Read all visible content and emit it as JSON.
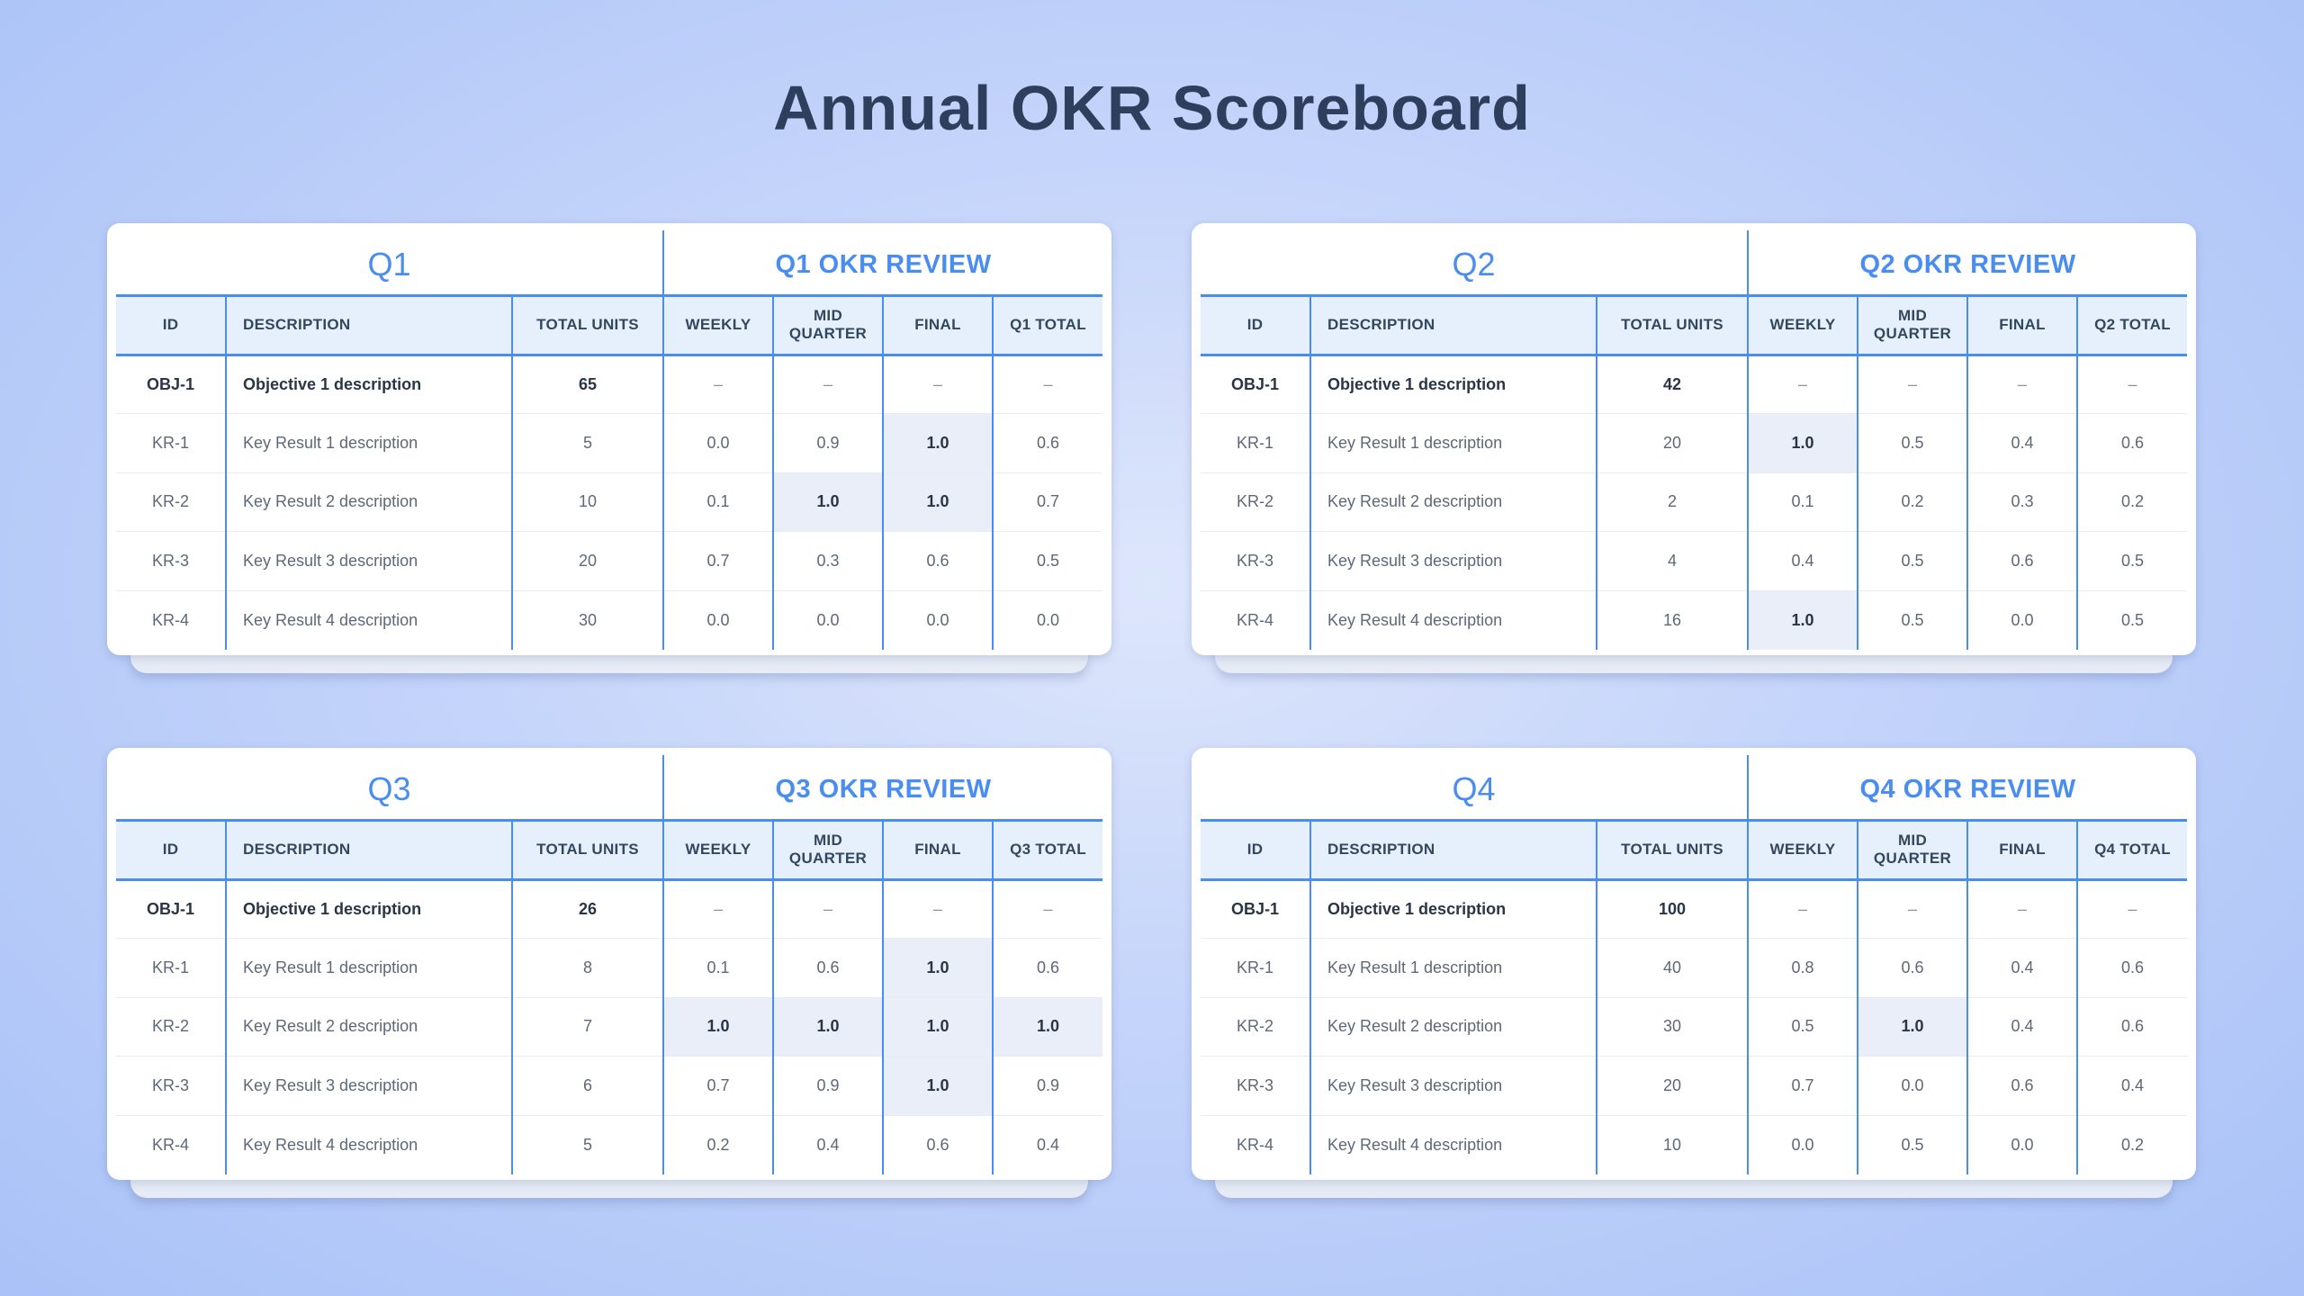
{
  "page_title": "Annual OKR Scoreboard",
  "column_headers": {
    "id": "ID",
    "description": "DESCRIPTION",
    "total_units": "TOTAL UNITS",
    "weekly": "WEEKLY",
    "mid_quarter": "MID QUARTER",
    "final": "FINAL"
  },
  "quarters": [
    {
      "label": "Q1",
      "review_title": "Q1 OKR REVIEW",
      "total_header": "Q1 TOTAL",
      "rows": [
        {
          "id": "OBJ-1",
          "desc": "Objective 1 description",
          "units": "65",
          "weekly": "–",
          "mid": "–",
          "final": "–",
          "total": "–"
        },
        {
          "id": "KR-1",
          "desc": "Key Result 1 description",
          "units": "5",
          "weekly": "0.0",
          "mid": "0.9",
          "final": "1.0",
          "total": "0.6"
        },
        {
          "id": "KR-2",
          "desc": "Key Result 2 description",
          "units": "10",
          "weekly": "0.1",
          "mid": "1.0",
          "final": "1.0",
          "total": "0.7"
        },
        {
          "id": "KR-3",
          "desc": "Key Result 3 description",
          "units": "20",
          "weekly": "0.7",
          "mid": "0.3",
          "final": "0.6",
          "total": "0.5"
        },
        {
          "id": "KR-4",
          "desc": "Key Result 4 description",
          "units": "30",
          "weekly": "0.0",
          "mid": "0.0",
          "final": "0.0",
          "total": "0.0"
        }
      ]
    },
    {
      "label": "Q2",
      "review_title": "Q2 OKR REVIEW",
      "total_header": "Q2 TOTAL",
      "rows": [
        {
          "id": "OBJ-1",
          "desc": "Objective 1 description",
          "units": "42",
          "weekly": "–",
          "mid": "–",
          "final": "–",
          "total": "–"
        },
        {
          "id": "KR-1",
          "desc": "Key Result 1 description",
          "units": "20",
          "weekly": "1.0",
          "mid": "0.5",
          "final": "0.4",
          "total": "0.6"
        },
        {
          "id": "KR-2",
          "desc": "Key Result 2 description",
          "units": "2",
          "weekly": "0.1",
          "mid": "0.2",
          "final": "0.3",
          "total": "0.2"
        },
        {
          "id": "KR-3",
          "desc": "Key Result 3 description",
          "units": "4",
          "weekly": "0.4",
          "mid": "0.5",
          "final": "0.6",
          "total": "0.5"
        },
        {
          "id": "KR-4",
          "desc": "Key Result 4 description",
          "units": "16",
          "weekly": "1.0",
          "mid": "0.5",
          "final": "0.0",
          "total": "0.5"
        }
      ]
    },
    {
      "label": "Q3",
      "review_title": "Q3 OKR REVIEW",
      "total_header": "Q3 TOTAL",
      "rows": [
        {
          "id": "OBJ-1",
          "desc": "Objective 1 description",
          "units": "26",
          "weekly": "–",
          "mid": "–",
          "final": "–",
          "total": "–"
        },
        {
          "id": "KR-1",
          "desc": "Key Result 1 description",
          "units": "8",
          "weekly": "0.1",
          "mid": "0.6",
          "final": "1.0",
          "total": "0.6"
        },
        {
          "id": "KR-2",
          "desc": "Key Result 2 description",
          "units": "7",
          "weekly": "1.0",
          "mid": "1.0",
          "final": "1.0",
          "total": "1.0"
        },
        {
          "id": "KR-3",
          "desc": "Key Result 3 description",
          "units": "6",
          "weekly": "0.7",
          "mid": "0.9",
          "final": "1.0",
          "total": "0.9"
        },
        {
          "id": "KR-4",
          "desc": "Key Result 4 description",
          "units": "5",
          "weekly": "0.2",
          "mid": "0.4",
          "final": "0.6",
          "total": "0.4"
        }
      ]
    },
    {
      "label": "Q4",
      "review_title": "Q4 OKR REVIEW",
      "total_header": "Q4 TOTAL",
      "rows": [
        {
          "id": "OBJ-1",
          "desc": "Objective 1 description",
          "units": "100",
          "weekly": "–",
          "mid": "–",
          "final": "–",
          "total": "–"
        },
        {
          "id": "KR-1",
          "desc": "Key Result 1 description",
          "units": "40",
          "weekly": "0.8",
          "mid": "0.6",
          "final": "0.4",
          "total": "0.6"
        },
        {
          "id": "KR-2",
          "desc": "Key Result 2 description",
          "units": "30",
          "weekly": "0.5",
          "mid": "1.0",
          "final": "0.4",
          "total": "0.6"
        },
        {
          "id": "KR-3",
          "desc": "Key Result 3 description",
          "units": "20",
          "weekly": "0.7",
          "mid": "0.0",
          "final": "0.6",
          "total": "0.4"
        },
        {
          "id": "KR-4",
          "desc": "Key Result 4 description",
          "units": "10",
          "weekly": "0.0",
          "mid": "0.5",
          "final": "0.0",
          "total": "0.2"
        }
      ]
    }
  ],
  "colors": {
    "accent": "#4a8df0",
    "title": "#2e3f5e",
    "header_fill": "#e6f0fc",
    "highlight_fill": "#e9eef9"
  }
}
